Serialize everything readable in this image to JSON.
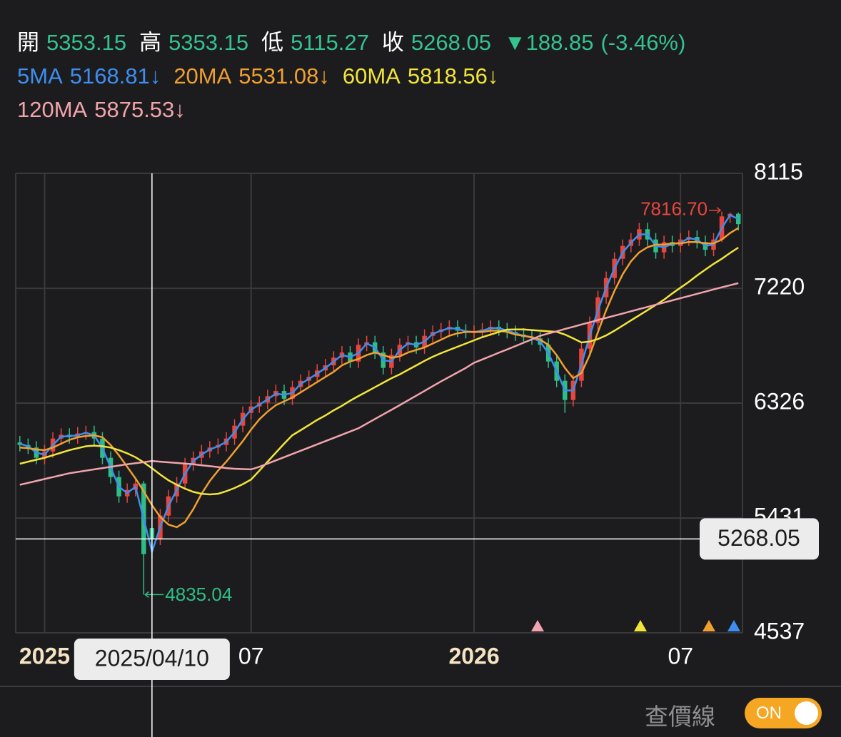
{
  "header": {
    "labels": [
      "開",
      "高",
      "低",
      "收"
    ],
    "change": "▼188.85",
    "change_pct": "(-3.46%)"
  },
  "chart_data": {
    "type": "candlestick",
    "categories": [
      null,
      null,
      null,
      "2025",
      null,
      null,
      null,
      null,
      null,
      null,
      null,
      null,
      null,
      null,
      null,
      null,
      null,
      null,
      null,
      null,
      null,
      null,
      null,
      null,
      null,
      null,
      null,
      null,
      "07",
      null,
      null,
      null,
      null,
      null,
      null,
      null,
      null,
      null,
      null,
      null,
      null,
      null,
      null,
      null,
      null,
      null,
      null,
      null,
      null,
      null,
      null,
      null,
      null,
      null,
      null,
      "2026",
      null,
      null,
      null,
      null,
      null,
      null,
      null,
      null,
      null,
      null,
      null,
      null,
      null,
      null,
      null,
      null,
      null,
      null,
      null,
      null,
      null,
      null,
      null,
      null,
      "07",
      null,
      null,
      null,
      null,
      null,
      null,
      null
    ],
    "ohlc": [
      [
        6020,
        6070,
        5950,
        6000
      ],
      [
        6000,
        6050,
        5930,
        5980
      ],
      [
        5980,
        6030,
        5850,
        5900
      ],
      [
        5900,
        6000,
        5850,
        5950
      ],
      [
        5950,
        6100,
        5900,
        6050
      ],
      [
        6050,
        6130,
        6000,
        6080
      ],
      [
        6080,
        6130,
        6010,
        6060
      ],
      [
        6060,
        6140,
        6010,
        6090
      ],
      [
        6090,
        6150,
        6040,
        6100
      ],
      [
        6100,
        6150,
        6000,
        6050
      ],
      [
        6050,
        6100,
        5850,
        5900
      ],
      [
        5900,
        5950,
        5700,
        5750
      ],
      [
        5750,
        5800,
        5550,
        5600
      ],
      [
        5600,
        5700,
        5550,
        5650
      ],
      [
        5650,
        5750,
        5600,
        5700
      ],
      [
        5700,
        5720,
        4835.04,
        5150
      ],
      [
        5353.15,
        5353.15,
        5115.27,
        5268.05
      ],
      [
        5268,
        5500,
        5220,
        5450
      ],
      [
        5450,
        5650,
        5400,
        5600
      ],
      [
        5600,
        5750,
        5550,
        5700
      ],
      [
        5700,
        5900,
        5650,
        5850
      ],
      [
        5850,
        5950,
        5800,
        5900
      ],
      [
        5900,
        6000,
        5850,
        5950
      ],
      [
        5950,
        6030,
        5900,
        5980
      ],
      [
        5980,
        6050,
        5930,
        6000
      ],
      [
        6000,
        6100,
        5950,
        6050
      ],
      [
        6050,
        6200,
        6000,
        6150
      ],
      [
        6150,
        6300,
        6100,
        6250
      ],
      [
        6250,
        6350,
        6200,
        6300
      ],
      [
        6300,
        6380,
        6250,
        6330
      ],
      [
        6330,
        6430,
        6280,
        6380
      ],
      [
        6380,
        6470,
        6330,
        6420
      ],
      [
        6420,
        6470,
        6310,
        6360
      ],
      [
        6360,
        6500,
        6310,
        6450
      ],
      [
        6450,
        6550,
        6400,
        6500
      ],
      [
        6500,
        6580,
        6450,
        6530
      ],
      [
        6530,
        6630,
        6480,
        6580
      ],
      [
        6580,
        6670,
        6530,
        6620
      ],
      [
        6620,
        6730,
        6570,
        6680
      ],
      [
        6680,
        6770,
        6630,
        6720
      ],
      [
        6720,
        6770,
        6600,
        6650
      ],
      [
        6650,
        6830,
        6600,
        6780
      ],
      [
        6780,
        6850,
        6730,
        6800
      ],
      [
        6800,
        6850,
        6670,
        6720
      ],
      [
        6720,
        6770,
        6550,
        6600
      ],
      [
        6600,
        6750,
        6550,
        6700
      ],
      [
        6700,
        6830,
        6650,
        6780
      ],
      [
        6780,
        6850,
        6730,
        6800
      ],
      [
        6800,
        6850,
        6710,
        6760
      ],
      [
        6760,
        6900,
        6710,
        6850
      ],
      [
        6850,
        6930,
        6800,
        6880
      ],
      [
        6880,
        6950,
        6830,
        6900
      ],
      [
        6900,
        6970,
        6850,
        6920
      ],
      [
        6920,
        6970,
        6840,
        6890
      ],
      [
        6890,
        6940,
        6830,
        6880
      ],
      [
        6880,
        6930,
        6830,
        6880
      ],
      [
        6880,
        6950,
        6830,
        6900
      ],
      [
        6900,
        6970,
        6850,
        6920
      ],
      [
        6920,
        6970,
        6850,
        6900
      ],
      [
        6900,
        6950,
        6830,
        6880
      ],
      [
        6880,
        6930,
        6810,
        6860
      ],
      [
        6860,
        6910,
        6790,
        6840
      ],
      [
        6840,
        6890,
        6780,
        6830
      ],
      [
        6830,
        6880,
        6730,
        6780
      ],
      [
        6780,
        6830,
        6600,
        6650
      ],
      [
        6650,
        6700,
        6450,
        6500
      ],
      [
        6500,
        6550,
        6250,
        6350
      ],
      [
        6350,
        6550,
        6300,
        6500
      ],
      [
        6500,
        6800,
        6450,
        6750
      ],
      [
        6750,
        7000,
        6700,
        6950
      ],
      [
        6950,
        7200,
        6900,
        7150
      ],
      [
        7150,
        7350,
        7100,
        7300
      ],
      [
        7300,
        7500,
        7250,
        7450
      ],
      [
        7450,
        7600,
        7400,
        7550
      ],
      [
        7550,
        7650,
        7500,
        7600
      ],
      [
        7600,
        7730,
        7550,
        7680
      ],
      [
        7680,
        7730,
        7550,
        7600
      ],
      [
        7600,
        7650,
        7450,
        7500
      ],
      [
        7500,
        7630,
        7450,
        7580
      ],
      [
        7580,
        7630,
        7500,
        7550
      ],
      [
        7550,
        7650,
        7500,
        7600
      ],
      [
        7600,
        7670,
        7550,
        7620
      ],
      [
        7620,
        7670,
        7530,
        7580
      ],
      [
        7580,
        7630,
        7470,
        7520
      ],
      [
        7520,
        7650,
        7470,
        7600
      ],
      [
        7600,
        7816.7,
        7580,
        7780
      ],
      [
        7780,
        7810,
        7730,
        7800
      ],
      [
        7800,
        7810,
        7670,
        7720
      ]
    ],
    "up_color": "#e8453c",
    "down_color": "#2ebd85",
    "high_label": "7816.70",
    "low_label": "4835.04",
    "series": [
      {
        "name": "5MA",
        "color": "#3d8ef0",
        "trend": "↓",
        "values": [
          6010,
          5990,
          5940,
          5925,
          6000,
          6065,
          6070,
          6075,
          6095,
          6075,
          5975,
          5825,
          5675,
          5625,
          5675,
          5425,
          5168.81,
          5360,
          5525,
          5650,
          5775,
          5875,
          5925,
          5965,
          5990,
          6025,
          6100,
          6200,
          6275,
          6315,
          6355,
          6400,
          6390,
          6405,
          6475,
          6515,
          6555,
          6600,
          6650,
          6700,
          6685,
          6715,
          6790,
          6760,
          6660,
          6650,
          6740,
          6790,
          6780,
          6805,
          6865,
          6890,
          6910,
          6905,
          6885,
          6880,
          6890,
          6910,
          6910,
          6890,
          6870,
          6850,
          6835,
          6805,
          6715,
          6575,
          6425,
          6425,
          6625,
          6850,
          7050,
          7225,
          7375,
          7500,
          7575,
          7640,
          7640,
          7550,
          7540,
          7565,
          7575,
          7610,
          7600,
          7550,
          7560,
          7690,
          7790,
          7760
        ]
      },
      {
        "name": "20MA",
        "color": "#f0a030",
        "trend": "↓",
        "values": [
          5980,
          5975,
          5965,
          5960,
          5980,
          6010,
          6040,
          6060,
          6070,
          6075,
          6060,
          6000,
          5920,
          5830,
          5740,
          5640,
          5531.08,
          5440,
          5380,
          5360,
          5400,
          5500,
          5620,
          5720,
          5800,
          5870,
          5950,
          6030,
          6120,
          6200,
          6260,
          6310,
          6340,
          6370,
          6410,
          6450,
          6490,
          6530,
          6570,
          6620,
          6650,
          6670,
          6700,
          6720,
          6700,
          6680,
          6690,
          6720,
          6740,
          6760,
          6790,
          6820,
          6850,
          6870,
          6880,
          6880,
          6880,
          6890,
          6890,
          6880,
          6860,
          6850,
          6840,
          6820,
          6780,
          6700,
          6600,
          6520,
          6560,
          6700,
          6880,
          7050,
          7200,
          7330,
          7430,
          7500,
          7540,
          7560,
          7560,
          7570,
          7570,
          7580,
          7580,
          7570,
          7570,
          7600,
          7650,
          7690
        ]
      },
      {
        "name": "60MA",
        "color": "#f2e53a",
        "trend": "↓",
        "values": [
          5854,
          5870,
          5885,
          5900,
          5920,
          5940,
          5960,
          5975,
          5990,
          5995,
          5990,
          5980,
          5960,
          5935,
          5905,
          5865,
          5818.56,
          5770,
          5725,
          5690,
          5660,
          5635,
          5620,
          5615,
          5620,
          5640,
          5665,
          5695,
          5731,
          5800,
          5870,
          5940,
          6010,
          6076,
          6115,
          6155,
          6195,
          6230,
          6270,
          6305,
          6345,
          6381,
          6415,
          6450,
          6485,
          6520,
          6550,
          6585,
          6620,
          6655,
          6687,
          6715,
          6740,
          6765,
          6790,
          6815,
          6840,
          6860,
          6880,
          6898,
          6900,
          6900,
          6895,
          6890,
          6885,
          6881,
          6860,
          6830,
          6798,
          6805,
          6825,
          6853,
          6890,
          6930,
          6970,
          7010,
          7050,
          7090,
          7131,
          7180,
          7225,
          7270,
          7320,
          7365,
          7410,
          7450,
          7495,
          7537
        ]
      },
      {
        "name": "120MA",
        "color": "#f2a4ac",
        "trend": "↓",
        "values": [
          5690,
          5705,
          5720,
          5735,
          5750,
          5765,
          5780,
          5790,
          5800,
          5810,
          5820,
          5830,
          5840,
          5850,
          5858,
          5866,
          5875.53,
          5870,
          5865,
          5860,
          5855,
          5850,
          5842,
          5835,
          5828,
          5820,
          5815,
          5812,
          5810,
          5830,
          5855,
          5880,
          5905,
          5930,
          5955,
          5980,
          6005,
          6030,
          6055,
          6080,
          6105,
          6130,
          6166,
          6202,
          6238,
          6274,
          6310,
          6347,
          6384,
          6421,
          6458,
          6495,
          6530,
          6565,
          6600,
          6640,
          6666,
          6692,
          6718,
          6744,
          6770,
          6796,
          6822,
          6850,
          6868,
          6885,
          6903,
          6920,
          6938,
          6955,
          6973,
          6990,
          7007,
          7024,
          7041,
          7058,
          7075,
          7092,
          7109,
          7126,
          7143,
          7160,
          7177,
          7194,
          7211,
          7228,
          7244,
          7260
        ]
      }
    ],
    "ylim": [
      4537,
      8115
    ],
    "yticks": [
      4537,
      5431,
      6326,
      7220,
      8115
    ],
    "grid": true,
    "crosshair": {
      "date": "2025/04/10"
    }
  },
  "controls": {
    "label": "查價線",
    "toggle": "ON"
  }
}
